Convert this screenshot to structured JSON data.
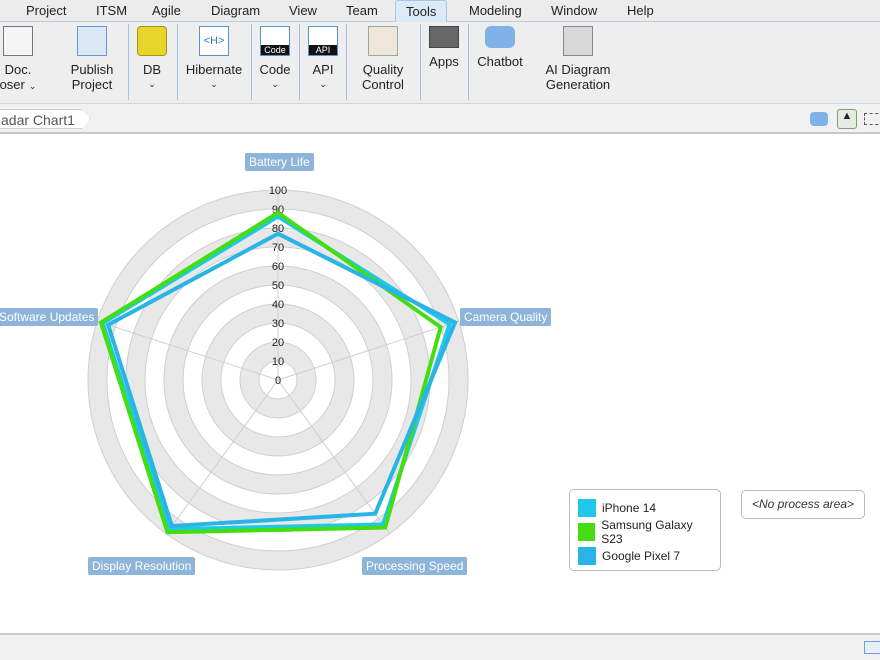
{
  "menu": [
    "Project",
    "ITSM",
    "Agile",
    "Diagram",
    "View",
    "Team",
    "Tools",
    "Modeling",
    "Window",
    "Help"
  ],
  "menu_active": "Tools",
  "ribbon": [
    {
      "label1": "Doc.",
      "label2": "oser",
      "chevron": true,
      "icon": "doc-composer-icon"
    },
    {
      "label1": "Publish",
      "label2": "Project",
      "icon": "publish-project-icon"
    },
    {
      "label1": "DB",
      "label2": "",
      "chevron": true,
      "icon": "database-icon"
    },
    {
      "label1": "Hibernate",
      "label2": "",
      "chevron": true,
      "icon": "hibernate-icon",
      "icon_text": "<H>"
    },
    {
      "label1": "Code",
      "label2": "",
      "chevron": true,
      "icon": "code-icon",
      "icon_text": "Code"
    },
    {
      "label1": "API",
      "label2": "",
      "chevron": true,
      "icon": "api-icon",
      "icon_text": "API"
    },
    {
      "label1": "Quality",
      "label2": "Control",
      "icon": "quality-control-icon"
    },
    {
      "label1": "Apps",
      "label2": "",
      "icon": "apps-icon"
    },
    {
      "label1": "Chatbot",
      "label2": "",
      "icon": "chatbot-icon"
    },
    {
      "label1": "AI Diagram",
      "label2": "Generation",
      "icon": "ai-diagram-icon"
    }
  ],
  "breadcrumb": "adar Chart1",
  "no_process_area": "<No process area>",
  "chart_data": {
    "type": "radar",
    "axes": [
      "Battery Life",
      "Camera Quality",
      "Processing Speed",
      "Display Resolution",
      "Software Updates"
    ],
    "ticks": [
      0,
      10,
      20,
      30,
      40,
      50,
      60,
      70,
      80,
      90,
      100
    ],
    "range": [
      0,
      100
    ],
    "grid": true,
    "legend_placement": "bottom-right",
    "series": [
      {
        "name": "iPhone 14",
        "color": "#1ec8e6",
        "values": [
          86,
          95,
          94,
          97,
          97
        ]
      },
      {
        "name": "Samsung Galaxy S23",
        "color": "#44dd11",
        "values": [
          88,
          90,
          96,
          99,
          98
        ]
      },
      {
        "name": "Google Pixel 7",
        "color": "#2ab4e6",
        "values": [
          77,
          98,
          87,
          95,
          94
        ]
      }
    ]
  }
}
